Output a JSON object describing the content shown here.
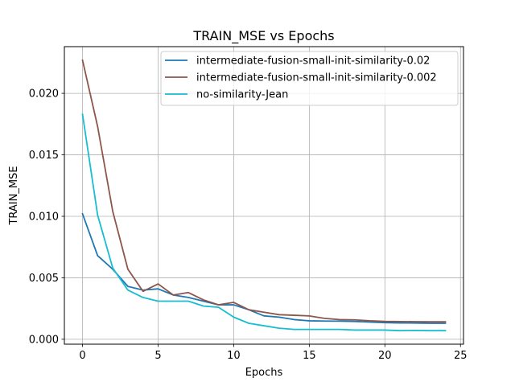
{
  "chart_data": {
    "type": "line",
    "title": "TRAIN_MSE vs Epochs",
    "xlabel": "Epochs",
    "ylabel": "TRAIN_MSE",
    "xlim": [
      -1.2,
      25.2
    ],
    "ylim": [
      -0.0004,
      0.0238
    ],
    "grid": true,
    "legend_position": "top-right",
    "x_ticks": [
      0,
      5,
      10,
      15,
      20,
      25
    ],
    "x_tick_labels": [
      "0",
      "5",
      "10",
      "15",
      "20",
      "25"
    ],
    "y_ticks": [
      0.0,
      0.005,
      0.01,
      0.015,
      0.02
    ],
    "y_tick_labels": [
      "0.000",
      "0.005",
      "0.010",
      "0.015",
      "0.020"
    ],
    "x": [
      0,
      1,
      2,
      3,
      4,
      5,
      6,
      7,
      8,
      9,
      10,
      11,
      12,
      13,
      14,
      15,
      16,
      17,
      18,
      19,
      20,
      21,
      22,
      23,
      24
    ],
    "series": [
      {
        "name": "intermediate-fusion-small-init-similarity-0.02",
        "color": "#1f77b4",
        "values": [
          0.0102,
          0.0068,
          0.0057,
          0.0043,
          0.004,
          0.0041,
          0.0036,
          0.0034,
          0.0031,
          0.0028,
          0.0028,
          0.0024,
          0.0019,
          0.0018,
          0.0016,
          0.0015,
          0.00148,
          0.00147,
          0.00145,
          0.0014,
          0.00135,
          0.00133,
          0.00132,
          0.0013,
          0.0013
        ]
      },
      {
        "name": "intermediate-fusion-small-init-similarity-0.002",
        "color": "#8c564b",
        "values": [
          0.0227,
          0.0173,
          0.0104,
          0.0057,
          0.0039,
          0.0045,
          0.0036,
          0.0038,
          0.0032,
          0.0028,
          0.003,
          0.0024,
          0.0022,
          0.002,
          0.00195,
          0.0019,
          0.0017,
          0.0016,
          0.00158,
          0.0015,
          0.00145,
          0.00144,
          0.00143,
          0.00142,
          0.00142
        ]
      },
      {
        "name": "no-similarity-Jean",
        "color": "#17becf",
        "values": [
          0.0183,
          0.0101,
          0.0058,
          0.004,
          0.0034,
          0.0031,
          0.0031,
          0.0031,
          0.0027,
          0.0026,
          0.0018,
          0.0013,
          0.0011,
          0.0009,
          0.0008,
          0.0008,
          0.0008,
          0.0008,
          0.00075,
          0.00075,
          0.00075,
          0.0007,
          0.00072,
          0.0007,
          0.0007
        ]
      }
    ]
  }
}
